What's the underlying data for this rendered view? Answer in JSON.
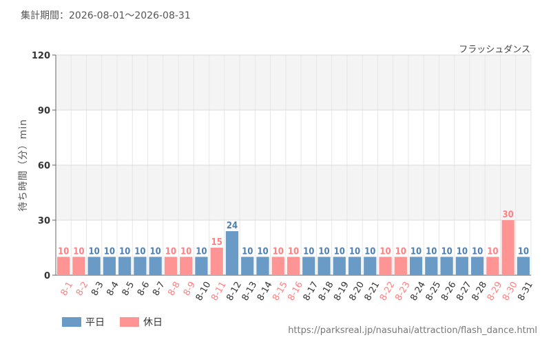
{
  "header": {
    "period": "集計期間：2026-08-01～2026-08-31",
    "attraction": "フラッシュダンス"
  },
  "footer": {
    "source": "https://parksreal.jp/nasuhai/attraction/flash_dance.html"
  },
  "colors": {
    "weekday": "#6a9ac6",
    "holiday": "#ff9494",
    "weekday_text": "#4f7fae",
    "holiday_text": "#ff8080"
  },
  "chart_data": {
    "type": "bar",
    "ylabel": "待ち時間（分）min",
    "ylim": [
      0,
      120
    ],
    "yticks": [
      0,
      30,
      60,
      90,
      120
    ],
    "grid": true,
    "legend_position": "bottom-left",
    "legend": [
      {
        "name": "平日",
        "kind": "weekday"
      },
      {
        "name": "休日",
        "kind": "holiday"
      }
    ],
    "categories": [
      "8-1",
      "8-2",
      "8-3",
      "8-4",
      "8-5",
      "8-6",
      "8-7",
      "8-8",
      "8-9",
      "8-10",
      "8-11",
      "8-12",
      "8-13",
      "8-14",
      "8-15",
      "8-16",
      "8-17",
      "8-18",
      "8-19",
      "8-20",
      "8-21",
      "8-22",
      "8-23",
      "8-24",
      "8-25",
      "8-26",
      "8-27",
      "8-28",
      "8-29",
      "8-30",
      "8-31"
    ],
    "values": [
      10,
      10,
      10,
      10,
      10,
      10,
      10,
      10,
      10,
      10,
      15,
      24,
      10,
      10,
      10,
      10,
      10,
      10,
      10,
      10,
      10,
      10,
      10,
      10,
      10,
      10,
      10,
      10,
      10,
      30,
      10
    ],
    "kinds": [
      "holiday",
      "holiday",
      "weekday",
      "weekday",
      "weekday",
      "weekday",
      "weekday",
      "holiday",
      "holiday",
      "weekday",
      "holiday",
      "weekday",
      "weekday",
      "weekday",
      "holiday",
      "holiday",
      "weekday",
      "weekday",
      "weekday",
      "weekday",
      "weekday",
      "holiday",
      "holiday",
      "weekday",
      "weekday",
      "weekday",
      "weekday",
      "weekday",
      "holiday",
      "holiday",
      "weekday"
    ]
  }
}
